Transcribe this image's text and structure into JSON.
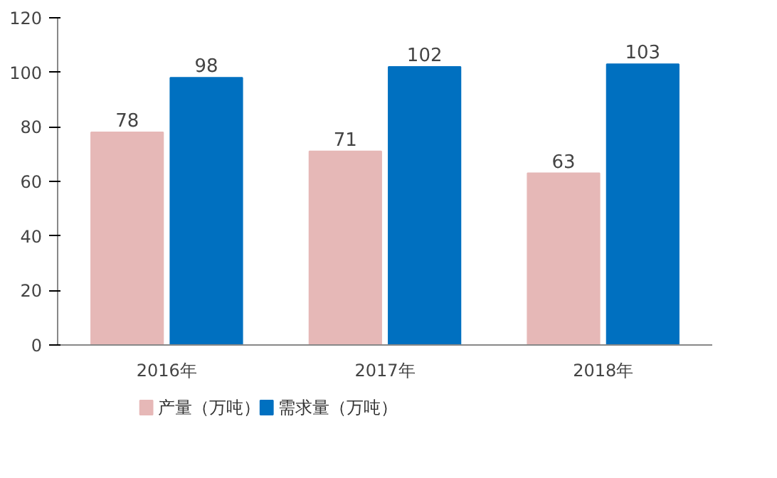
{
  "chart_data": {
    "type": "bar",
    "categories": [
      "2016年",
      "2017年",
      "2018年"
    ],
    "series": [
      {
        "name": "产量（万吨）",
        "color": "#e6b8b7",
        "values": [
          78,
          71,
          63
        ]
      },
      {
        "name": "需求量（万吨）",
        "color": "#0070c0",
        "values": [
          98,
          102,
          103
        ]
      }
    ],
    "ylim": [
      0,
      120
    ],
    "yticks": [
      0,
      20,
      40,
      60,
      80,
      100,
      120
    ],
    "data_labels": true,
    "legend": "bottom left",
    "grid": false
  }
}
